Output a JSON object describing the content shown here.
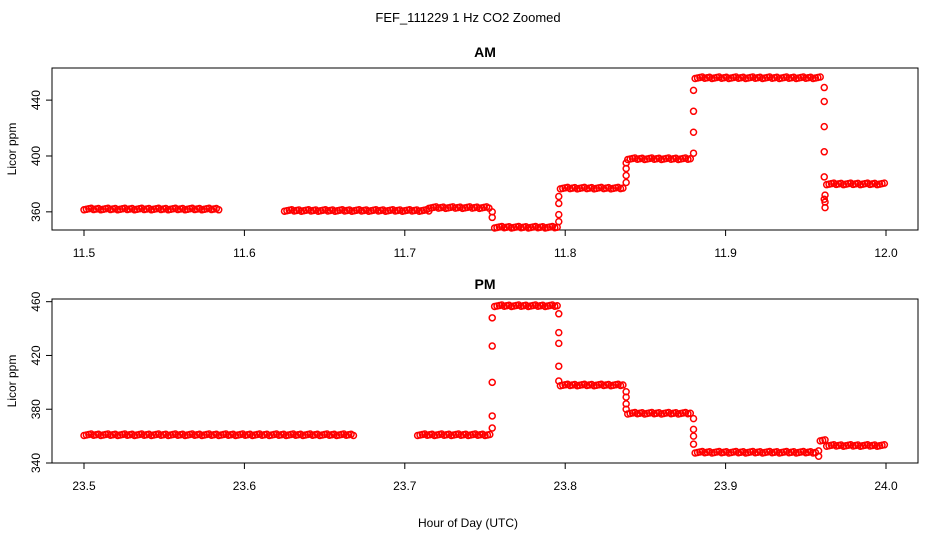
{
  "figure": {
    "title": "FEF_111229  1 Hz CO2 Zoomed",
    "xlabel": "Hour of Day (UTC)"
  },
  "chart_data": [
    {
      "type": "scatter",
      "title": "AM",
      "ylabel": "Licor ppm",
      "xlim": [
        11.5,
        12.0
      ],
      "ylim": [
        347,
        463
      ],
      "xticks": [
        "11.5",
        "11.6",
        "11.7",
        "11.8",
        "11.9",
        "12.0"
      ],
      "yticks": [
        "360",
        "400",
        "440"
      ],
      "marker": "open-circle",
      "color": "#ff0000",
      "grid": false,
      "segments": [
        {
          "x": [
            11.5,
            11.585
          ],
          "y": 362
        },
        {
          "x": [
            11.625,
            11.715
          ],
          "y": 361
        },
        {
          "x": [
            11.715,
            11.753
          ],
          "y": 363
        },
        {
          "x": [
            11.756,
            11.795
          ],
          "y": 349
        },
        {
          "x": [
            11.797,
            11.837
          ],
          "y": 377
        },
        {
          "x": [
            11.839,
            11.879
          ],
          "y": 398
        },
        {
          "x": [
            11.881,
            11.96
          ],
          "y": 456
        },
        {
          "x": [
            11.963,
            12.0
          ],
          "y": 380
        }
      ],
      "transitions": [
        {
          "x": 11.7545,
          "y": [
            356,
            360
          ]
        },
        {
          "x": 11.796,
          "y": [
            353,
            358,
            366,
            371
          ]
        },
        {
          "x": 11.838,
          "y": [
            381,
            386,
            391,
            395
          ]
        },
        {
          "x": 11.88,
          "y": [
            402,
            417,
            432,
            447
          ]
        },
        {
          "x": 11.9615,
          "y": [
            449,
            439,
            421,
            403,
            385,
            369
          ]
        },
        {
          "x": 11.962,
          "y": [
            363,
            367,
            372
          ]
        }
      ]
    },
    {
      "type": "scatter",
      "title": "PM",
      "ylabel": "Licor ppm",
      "xlim": [
        23.5,
        24.0
      ],
      "ylim": [
        340,
        462
      ],
      "xticks": [
        "23.5",
        "23.6",
        "23.7",
        "23.8",
        "23.9",
        "24.0"
      ],
      "yticks": [
        "340",
        "380",
        "420",
        "460"
      ],
      "marker": "open-circle",
      "color": "#ff0000",
      "grid": false,
      "segments": [
        {
          "x": [
            23.5,
            23.668
          ],
          "y": 361
        },
        {
          "x": [
            23.708,
            23.753
          ],
          "y": 361
        },
        {
          "x": [
            23.756,
            23.795
          ],
          "y": 457
        },
        {
          "x": [
            23.797,
            23.837
          ],
          "y": 398
        },
        {
          "x": [
            23.839,
            23.879
          ],
          "y": 377
        },
        {
          "x": [
            23.881,
            23.957
          ],
          "y": 348
        },
        {
          "x": [
            23.959,
            23.962
          ],
          "y": 357
        },
        {
          "x": [
            23.963,
            24.0
          ],
          "y": 353
        }
      ],
      "transitions": [
        {
          "x": 23.7545,
          "y": [
            366,
            375,
            400,
            427,
            448
          ]
        },
        {
          "x": 23.796,
          "y": [
            451,
            437,
            429,
            412,
            401
          ]
        },
        {
          "x": 23.838,
          "y": [
            393,
            389,
            384,
            380
          ]
        },
        {
          "x": 23.88,
          "y": [
            373,
            365,
            360,
            354
          ]
        },
        {
          "x": 23.958,
          "y": [
            345,
            349
          ]
        }
      ]
    }
  ]
}
